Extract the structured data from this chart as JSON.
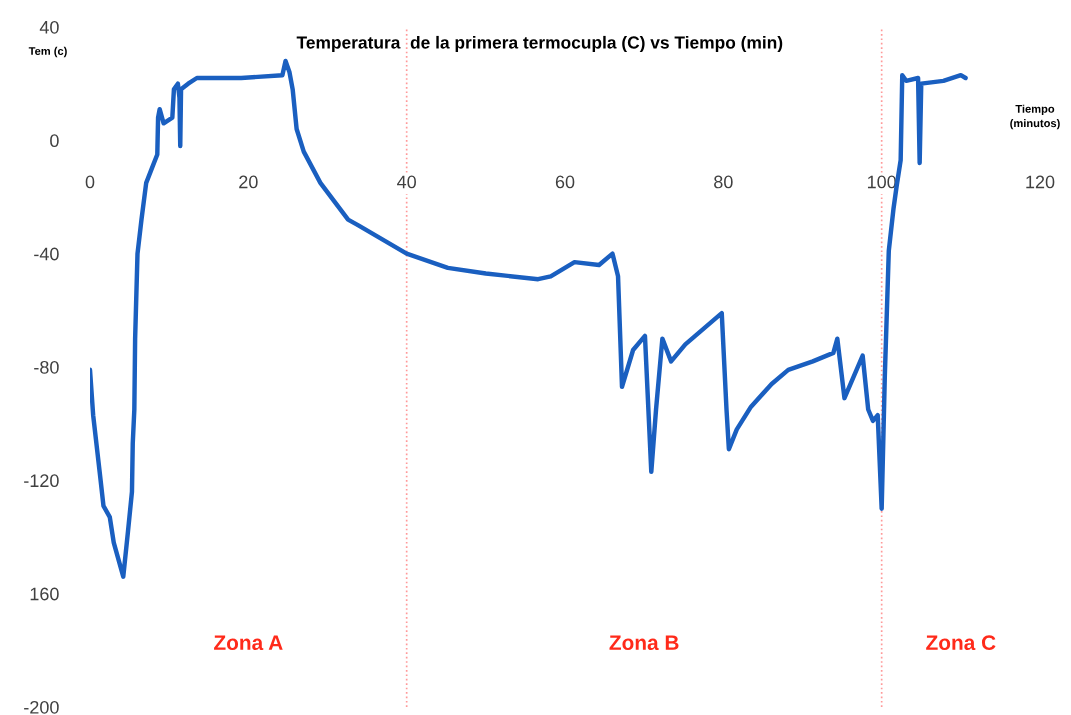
{
  "chart_data": {
    "type": "line",
    "title": "Temperatura  de la primera termocupla (C) vs Tiempo (min)",
    "xlabel": "Tiempo\n(minutos)",
    "ylabel": "Tem (c)",
    "x": [
      0,
      0.4,
      1.3,
      1.7,
      2.5,
      3.0,
      4.2,
      4.8,
      5.3,
      5.4,
      5.6,
      5.7,
      5.8,
      6.0,
      6.5,
      7.1,
      7.8,
      8.5,
      8.6,
      8.8,
      9.3,
      10.4,
      10.6,
      11.1,
      11.3,
      11.4,
      11.5,
      12.4,
      13.5,
      19.1,
      24.3,
      24.7,
      25.2,
      25.6,
      26.1,
      27.0,
      29.1,
      32.6,
      33.9,
      40.0,
      45.2,
      50.0,
      56.6,
      58.2,
      61.2,
      64.3,
      66.0,
      66.7,
      67.2,
      68.6,
      70.1,
      70.9,
      71.5,
      72.3,
      73.4,
      75.2,
      79.8,
      80.4,
      80.7,
      81.7,
      83.5,
      86.1,
      88.2,
      91.3,
      93.9,
      94.4,
      95.3,
      97.6,
      98.3,
      98.9,
      99.5,
      100.0,
      100.4,
      100.9,
      101.5,
      101.9,
      102.4,
      102.6,
      103.1,
      104.6,
      104.8,
      105.0,
      107.8,
      110.0,
      110.6
    ],
    "series": [
      {
        "color": "#1a5fc0",
        "values": [
          -81,
          -97,
          -119,
          -129,
          -133,
          -142,
          -154,
          -138,
          -124,
          -107,
          -95,
          -70,
          -60,
          -40,
          -28,
          -15,
          -10,
          -5,
          8,
          11,
          6,
          8,
          18,
          20,
          15,
          -2,
          18,
          20,
          22,
          22,
          23,
          28,
          24,
          18,
          4,
          -4,
          -15,
          -28,
          -30,
          -40,
          -45,
          -47,
          -49,
          -48,
          -43,
          -44,
          -40,
          -48,
          -87,
          -74,
          -69,
          -117,
          -95,
          -70,
          -78,
          -72,
          -61,
          -95,
          -109,
          -102,
          -94,
          -86,
          -81,
          -78,
          -75,
          -70,
          -91,
          -76,
          -95,
          -99,
          -97,
          -130,
          -83,
          -39,
          -24,
          -16,
          -7,
          23,
          21,
          22,
          -8,
          20,
          21,
          23,
          22
        ]
      }
    ],
    "xlim": [
      0,
      120
    ],
    "xticks": [
      0,
      20,
      40,
      60,
      80,
      100,
      120
    ],
    "ylim": [
      -200,
      40
    ],
    "yticks": [
      40,
      0,
      -40,
      -80,
      -120,
      {
        "value": -160,
        "label": "160"
      },
      -200
    ],
    "ref_lines": [
      {
        "axis": "x",
        "value": 40,
        "color": "#ff9999",
        "line_style": "dotted"
      },
      {
        "axis": "x",
        "value": 100,
        "color": "#ff9999",
        "line_style": "dotted"
      }
    ],
    "annotations": [
      "Zona A",
      "Zona B",
      "Zona C"
    ]
  }
}
